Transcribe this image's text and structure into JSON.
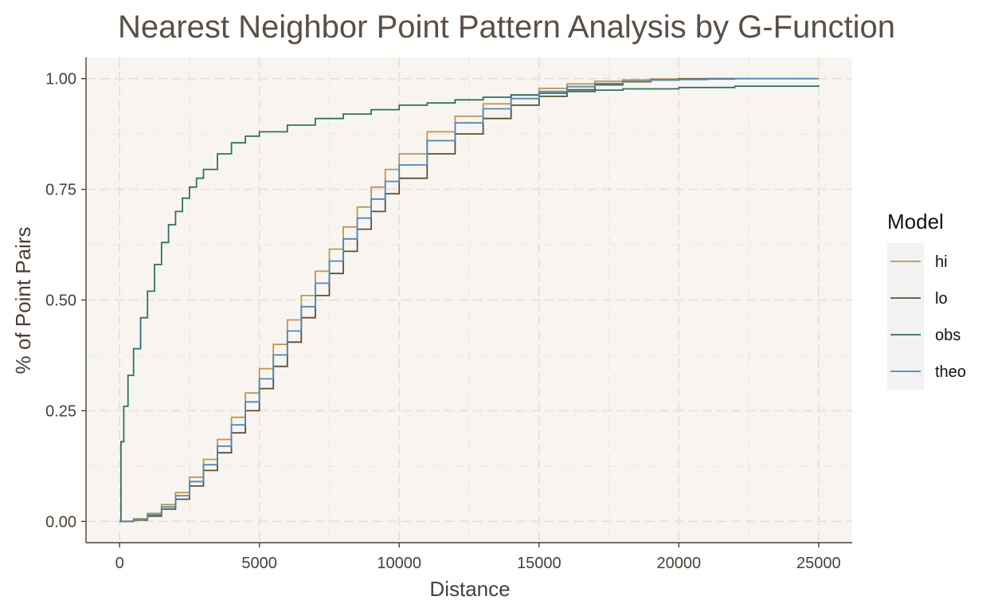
{
  "chart_data": {
    "type": "line",
    "title": "Nearest Neighbor Point Pattern Analysis by G-Function",
    "xlabel": "Distance",
    "ylabel": "% of Point Pairs",
    "xlim": [
      -1200,
      26200
    ],
    "ylim": [
      -0.048,
      1.048
    ],
    "x_ticks": [
      0,
      5000,
      10000,
      15000,
      20000,
      25000
    ],
    "x_tick_labels": [
      "0",
      "5000",
      "10000",
      "15000",
      "20000",
      "25000"
    ],
    "y_ticks": [
      0,
      0.25,
      0.5,
      0.75,
      1
    ],
    "y_tick_labels": [
      "0.00",
      "0.25",
      "0.50",
      "0.75",
      "1.00"
    ],
    "grid": true,
    "legend": {
      "title": "Model",
      "position": "right"
    },
    "background_color": "#f8f5f0",
    "series": [
      {
        "name": "hi",
        "color": "#c0954b",
        "x": [
          0,
          500,
          1000,
          1500,
          2000,
          2500,
          3000,
          3500,
          4000,
          4500,
          5000,
          5500,
          6000,
          6500,
          7000,
          7500,
          8000,
          8500,
          9000,
          9500,
          10000,
          11000,
          12000,
          13000,
          14000,
          15000,
          16000,
          17000,
          18000,
          19000,
          20000,
          21000
        ],
        "y": [
          0,
          0.006,
          0.018,
          0.038,
          0.065,
          0.1,
          0.14,
          0.185,
          0.235,
          0.29,
          0.345,
          0.4,
          0.455,
          0.51,
          0.565,
          0.615,
          0.665,
          0.71,
          0.755,
          0.795,
          0.83,
          0.88,
          0.915,
          0.943,
          0.963,
          0.978,
          0.988,
          0.994,
          0.997,
          0.999,
          1.0,
          1.0
        ]
      },
      {
        "name": "lo",
        "color": "#5a5230",
        "x": [
          0,
          500,
          1000,
          1500,
          2000,
          2500,
          3000,
          3500,
          4000,
          4500,
          5000,
          5500,
          6000,
          6500,
          7000,
          7500,
          8000,
          8500,
          9000,
          9500,
          10000,
          11000,
          12000,
          13000,
          14000,
          15000,
          16000,
          17000,
          18000,
          19000,
          20000,
          21000,
          22000
        ],
        "y": [
          0,
          0.003,
          0.012,
          0.028,
          0.05,
          0.08,
          0.115,
          0.155,
          0.2,
          0.25,
          0.3,
          0.35,
          0.405,
          0.46,
          0.51,
          0.56,
          0.61,
          0.66,
          0.7,
          0.74,
          0.775,
          0.83,
          0.875,
          0.91,
          0.94,
          0.96,
          0.975,
          0.986,
          0.993,
          0.997,
          0.999,
          1.0,
          1.0
        ]
      },
      {
        "name": "obs",
        "color": "#2e7068",
        "x": [
          0,
          50,
          150,
          300,
          500,
          750,
          1000,
          1250,
          1500,
          1750,
          2000,
          2250,
          2500,
          2750,
          3000,
          3500,
          4000,
          4500,
          5000,
          6000,
          7000,
          8000,
          9000,
          10000,
          11000,
          12000,
          13000,
          14000,
          15000,
          16000,
          17000,
          18000,
          20000,
          22000,
          25000
        ],
        "y": [
          0,
          0.18,
          0.26,
          0.33,
          0.39,
          0.46,
          0.52,
          0.58,
          0.63,
          0.67,
          0.7,
          0.73,
          0.755,
          0.775,
          0.795,
          0.83,
          0.855,
          0.87,
          0.88,
          0.895,
          0.91,
          0.92,
          0.93,
          0.94,
          0.945,
          0.952,
          0.958,
          0.963,
          0.967,
          0.971,
          0.974,
          0.977,
          0.98,
          0.983,
          0.985
        ]
      },
      {
        "name": "theo",
        "color": "#4a88c0",
        "x": [
          0,
          500,
          1000,
          1500,
          2000,
          2500,
          3000,
          3500,
          4000,
          4500,
          5000,
          5500,
          6000,
          6500,
          7000,
          7500,
          8000,
          8500,
          9000,
          9500,
          10000,
          11000,
          12000,
          13000,
          14000,
          15000,
          16000,
          17000,
          18000,
          19000,
          20000,
          21000,
          22000,
          23000,
          25000
        ],
        "y": [
          0,
          0.004,
          0.015,
          0.033,
          0.058,
          0.09,
          0.128,
          0.17,
          0.218,
          0.27,
          0.322,
          0.376,
          0.43,
          0.485,
          0.538,
          0.588,
          0.638,
          0.685,
          0.728,
          0.768,
          0.805,
          0.86,
          0.9,
          0.932,
          0.955,
          0.971,
          0.982,
          0.989,
          0.994,
          0.997,
          0.998,
          0.999,
          1.0,
          1.0,
          1.0
        ]
      }
    ]
  }
}
